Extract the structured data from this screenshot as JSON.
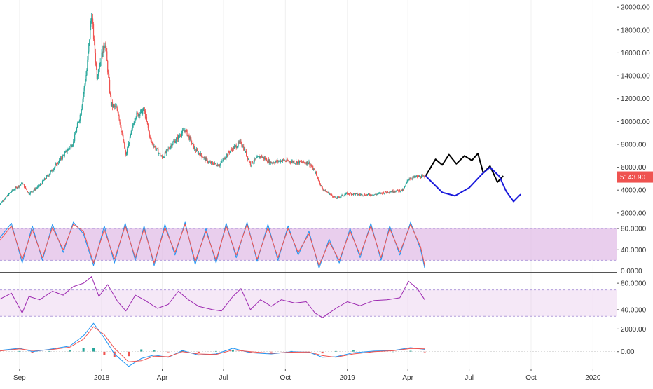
{
  "chart_data": [
    {
      "panel": "price",
      "type": "candlestick",
      "ylim": [
        1500,
        20500
      ],
      "y_ticks": [
        "20000.00",
        "18000.00",
        "16000.00",
        "14000.00",
        "12000.00",
        "10000.00",
        "8000.00",
        "6000.00",
        "4000.00",
        "2000.00"
      ],
      "y_tick_values": [
        20000,
        18000,
        16000,
        14000,
        12000,
        10000,
        8000,
        6000,
        4000,
        2000
      ],
      "last_price": 5143.9,
      "last_price_label": "5143.90",
      "series": [
        {
          "name": "",
          "x": [
            "2017-08-01",
            "2017-08-20",
            "2017-09-05",
            "2017-09-15",
            "2017-10-01",
            "2017-10-20",
            "2017-11-05",
            "2017-11-20",
            "2017-12-01",
            "2017-12-10",
            "2017-12-17",
            "2017-12-25",
            "2018-01-06",
            "2018-01-15",
            "2018-01-25",
            "2018-02-06",
            "2018-02-20",
            "2018-03-05",
            "2018-03-15",
            "2018-04-01",
            "2018-04-15",
            "2018-05-05",
            "2018-05-20",
            "2018-06-10",
            "2018-06-25",
            "2018-07-10",
            "2018-07-27",
            "2018-08-10",
            "2018-08-25",
            "2018-09-10",
            "2018-09-25",
            "2018-10-10",
            "2018-11-05",
            "2018-11-14",
            "2018-11-25",
            "2018-12-15",
            "2019-01-01",
            "2019-01-20",
            "2019-02-10",
            "2019-03-01",
            "2019-03-25",
            "2019-04-02",
            "2019-04-15",
            "2019-04-26"
          ],
          "values": [
            2700,
            3900,
            4600,
            3700,
            4400,
            5800,
            7000,
            8200,
            10800,
            14500,
            19500,
            14000,
            17000,
            11500,
            11000,
            7000,
            10500,
            11000,
            8300,
            6800,
            8000,
            9300,
            7500,
            6400,
            6200,
            7400,
            8200,
            6300,
            7000,
            6400,
            6600,
            6500,
            6400,
            5600,
            4100,
            3300,
            3700,
            3600,
            3600,
            3850,
            4000,
            5000,
            5200,
            5144
          ]
        }
      ],
      "annotations": [
        {
          "type": "drawing",
          "name": "black-sketch",
          "color": "#000000",
          "x": [
            "2019-04-28",
            "2019-05-12",
            "2019-05-22",
            "2019-06-01",
            "2019-06-12",
            "2019-06-24",
            "2019-07-05",
            "2019-07-14",
            "2019-07-22",
            "2019-08-01",
            "2019-08-12",
            "2019-08-20"
          ],
          "y": [
            5300,
            6700,
            6200,
            7100,
            6300,
            7000,
            6600,
            7200,
            5500,
            6100,
            4700,
            5200
          ]
        },
        {
          "type": "drawing",
          "name": "blue-sketch",
          "color": "#1a1adb",
          "x": [
            "2019-04-28",
            "2019-05-22",
            "2019-06-10",
            "2019-07-01",
            "2019-07-20",
            "2019-08-01",
            "2019-08-15",
            "2019-08-25",
            "2019-09-05",
            "2019-09-15"
          ],
          "y": [
            5200,
            3800,
            3500,
            4200,
            5400,
            6000,
            5200,
            3900,
            3000,
            3600
          ]
        }
      ]
    },
    {
      "panel": "stochastic",
      "type": "line",
      "ylim": [
        -2,
        96
      ],
      "y_ticks": [
        "80.0000",
        "40.0000",
        "0.0000"
      ],
      "y_tick_values": [
        80,
        40,
        0
      ],
      "band": [
        20,
        80
      ],
      "series": [
        {
          "name": "",
          "color": "#2196f3",
          "x": [
            "2017-08-01",
            "2017-08-20",
            "2017-09-05",
            "2017-09-20",
            "2017-10-05",
            "2017-10-20",
            "2017-11-05",
            "2017-11-20",
            "2017-12-05",
            "2017-12-20",
            "2018-01-05",
            "2018-01-20",
            "2018-02-05",
            "2018-02-20",
            "2018-03-05",
            "2018-03-20",
            "2018-04-05",
            "2018-04-20",
            "2018-05-05",
            "2018-05-20",
            "2018-06-05",
            "2018-06-20",
            "2018-07-05",
            "2018-07-20",
            "2018-08-05",
            "2018-08-20",
            "2018-09-05",
            "2018-09-20",
            "2018-10-05",
            "2018-10-20",
            "2018-11-05",
            "2018-11-20",
            "2018-12-05",
            "2018-12-20",
            "2019-01-05",
            "2019-01-20",
            "2019-02-05",
            "2019-02-20",
            "2019-03-05",
            "2019-03-20",
            "2019-04-05",
            "2019-04-20",
            "2019-04-26"
          ],
          "values": [
            60,
            90,
            15,
            85,
            20,
            88,
            35,
            92,
            70,
            10,
            85,
            15,
            90,
            20,
            85,
            10,
            88,
            30,
            92,
            12,
            80,
            15,
            90,
            25,
            92,
            18,
            88,
            20,
            85,
            30,
            75,
            5,
            60,
            15,
            80,
            25,
            90,
            20,
            85,
            30,
            92,
            40,
            5
          ]
        },
        {
          "name": "",
          "color": "#ef5350",
          "x": [
            "2017-08-01",
            "2017-08-20",
            "2017-09-05",
            "2017-09-20",
            "2017-10-05",
            "2017-10-20",
            "2017-11-05",
            "2017-11-20",
            "2017-12-05",
            "2017-12-20",
            "2018-01-05",
            "2018-01-20",
            "2018-02-05",
            "2018-02-20",
            "2018-03-05",
            "2018-03-20",
            "2018-04-05",
            "2018-04-20",
            "2018-05-05",
            "2018-05-20",
            "2018-06-05",
            "2018-06-20",
            "2018-07-05",
            "2018-07-20",
            "2018-08-05",
            "2018-08-20",
            "2018-09-05",
            "2018-09-20",
            "2018-10-05",
            "2018-10-20",
            "2018-11-05",
            "2018-11-20",
            "2018-12-05",
            "2018-12-20",
            "2019-01-05",
            "2019-01-20",
            "2019-02-05",
            "2019-02-20",
            "2019-03-05",
            "2019-03-20",
            "2019-04-05",
            "2019-04-20",
            "2019-04-26"
          ],
          "values": [
            55,
            85,
            22,
            78,
            25,
            82,
            40,
            88,
            75,
            15,
            78,
            22,
            85,
            25,
            80,
            15,
            82,
            35,
            88,
            18,
            75,
            20,
            85,
            30,
            88,
            22,
            82,
            25,
            80,
            35,
            70,
            10,
            55,
            20,
            75,
            30,
            85,
            25,
            80,
            35,
            88,
            45,
            10
          ]
        }
      ]
    },
    {
      "panel": "rsi",
      "type": "line",
      "ylim": [
        25,
        95
      ],
      "y_ticks": [
        "80.0000",
        "40.0000"
      ],
      "y_tick_values": [
        80,
        40
      ],
      "band": [
        30,
        70
      ],
      "series": [
        {
          "name": "",
          "color": "#9c27b0",
          "x": [
            "2017-08-01",
            "2017-08-20",
            "2017-09-05",
            "2017-09-15",
            "2017-10-01",
            "2017-10-20",
            "2017-11-05",
            "2017-11-20",
            "2017-12-05",
            "2017-12-17",
            "2017-12-28",
            "2018-01-10",
            "2018-01-25",
            "2018-02-06",
            "2018-02-20",
            "2018-03-05",
            "2018-03-25",
            "2018-04-10",
            "2018-04-25",
            "2018-05-10",
            "2018-05-25",
            "2018-06-15",
            "2018-06-28",
            "2018-07-15",
            "2018-07-27",
            "2018-08-10",
            "2018-08-25",
            "2018-09-10",
            "2018-09-25",
            "2018-10-15",
            "2018-11-01",
            "2018-11-14",
            "2018-11-25",
            "2018-12-15",
            "2019-01-01",
            "2019-01-20",
            "2019-02-10",
            "2019-03-01",
            "2019-03-20",
            "2019-04-02",
            "2019-04-15",
            "2019-04-26"
          ],
          "values": [
            55,
            65,
            35,
            60,
            55,
            68,
            62,
            75,
            80,
            90,
            60,
            78,
            52,
            38,
            62,
            55,
            42,
            48,
            68,
            55,
            45,
            40,
            38,
            60,
            72,
            40,
            55,
            45,
            55,
            50,
            52,
            35,
            28,
            42,
            52,
            46,
            54,
            55,
            58,
            83,
            72,
            55
          ]
        }
      ]
    },
    {
      "panel": "macd",
      "type": "line",
      "ylim": [
        -1500,
        2700
      ],
      "y_ticks": [
        "2000.00",
        "0.00"
      ],
      "y_tick_values": [
        2000,
        0
      ],
      "series": [
        {
          "name": "",
          "color": "#2196f3",
          "x": [
            "2017-08-01",
            "2017-09-01",
            "2017-09-20",
            "2017-10-15",
            "2017-11-15",
            "2017-12-05",
            "2017-12-20",
            "2018-01-05",
            "2018-01-20",
            "2018-02-10",
            "2018-03-01",
            "2018-03-20",
            "2018-04-10",
            "2018-05-01",
            "2018-05-25",
            "2018-06-20",
            "2018-07-15",
            "2018-08-10",
            "2018-09-10",
            "2018-10-10",
            "2018-11-05",
            "2018-11-25",
            "2018-12-15",
            "2019-01-10",
            "2019-02-10",
            "2019-03-10",
            "2019-04-05",
            "2019-04-26"
          ],
          "values": [
            100,
            300,
            0,
            200,
            500,
            1400,
            2500,
            1200,
            -200,
            -1300,
            -600,
            -300,
            -500,
            100,
            -300,
            -200,
            300,
            -100,
            -200,
            0,
            -50,
            -500,
            -450,
            -100,
            50,
            100,
            350,
            200
          ]
        },
        {
          "name": "",
          "color": "#ef5350",
          "x": [
            "2017-08-01",
            "2017-09-01",
            "2017-09-20",
            "2017-10-15",
            "2017-11-15",
            "2017-12-05",
            "2017-12-20",
            "2018-01-05",
            "2018-01-20",
            "2018-02-10",
            "2018-03-01",
            "2018-03-20",
            "2018-04-10",
            "2018-05-01",
            "2018-05-25",
            "2018-06-20",
            "2018-07-15",
            "2018-08-10",
            "2018-09-10",
            "2018-10-10",
            "2018-11-05",
            "2018-11-25",
            "2018-12-15",
            "2019-01-10",
            "2019-02-10",
            "2019-03-10",
            "2019-04-05",
            "2019-04-26"
          ],
          "values": [
            50,
            250,
            100,
            150,
            400,
            1100,
            2200,
            1500,
            300,
            -900,
            -800,
            -400,
            -450,
            0,
            -200,
            -250,
            150,
            0,
            -150,
            -50,
            -30,
            -350,
            -500,
            -200,
            0,
            80,
            280,
            250
          ]
        }
      ],
      "histogram": {
        "x": [
          "2017-09-01",
          "2017-09-20",
          "2017-10-15",
          "2017-11-15",
          "2017-12-05",
          "2017-12-20",
          "2018-01-05",
          "2018-01-20",
          "2018-02-10",
          "2018-03-01",
          "2018-03-20",
          "2018-04-10",
          "2018-05-01",
          "2018-05-25",
          "2018-06-20",
          "2018-07-15",
          "2018-08-10",
          "2018-09-10",
          "2018-10-10",
          "2018-11-05",
          "2018-11-25",
          "2018-12-15",
          "2019-01-10",
          "2019-02-10",
          "2019-03-10",
          "2019-04-05",
          "2019-04-26"
        ],
        "values": [
          50,
          -100,
          50,
          100,
          300,
          300,
          -300,
          -500,
          -400,
          200,
          100,
          -50,
          100,
          -100,
          50,
          150,
          -100,
          -50,
          50,
          -20,
          -150,
          50,
          100,
          50,
          20,
          70,
          -50
        ]
      }
    }
  ],
  "x_axis": {
    "start": "2017-08-03",
    "end": "2020-02-05",
    "labels": [
      "Sep",
      "2018",
      "Apr",
      "Jul",
      "Oct",
      "2019",
      "Apr",
      "Jul",
      "Oct",
      "2020"
    ],
    "label_dates": [
      "2017-09-01",
      "2018-01-01",
      "2018-04-01",
      "2018-07-01",
      "2018-10-01",
      "2019-01-01",
      "2019-04-01",
      "2019-07-01",
      "2019-10-01",
      "2020-01-01"
    ]
  },
  "colors": {
    "up": "#26a69a",
    "down": "#ef5350",
    "band_fill": "#e1bee7",
    "last_price_line": "#ef9a9a",
    "axis_text": "#333333",
    "grid": "#f0f0f0"
  }
}
